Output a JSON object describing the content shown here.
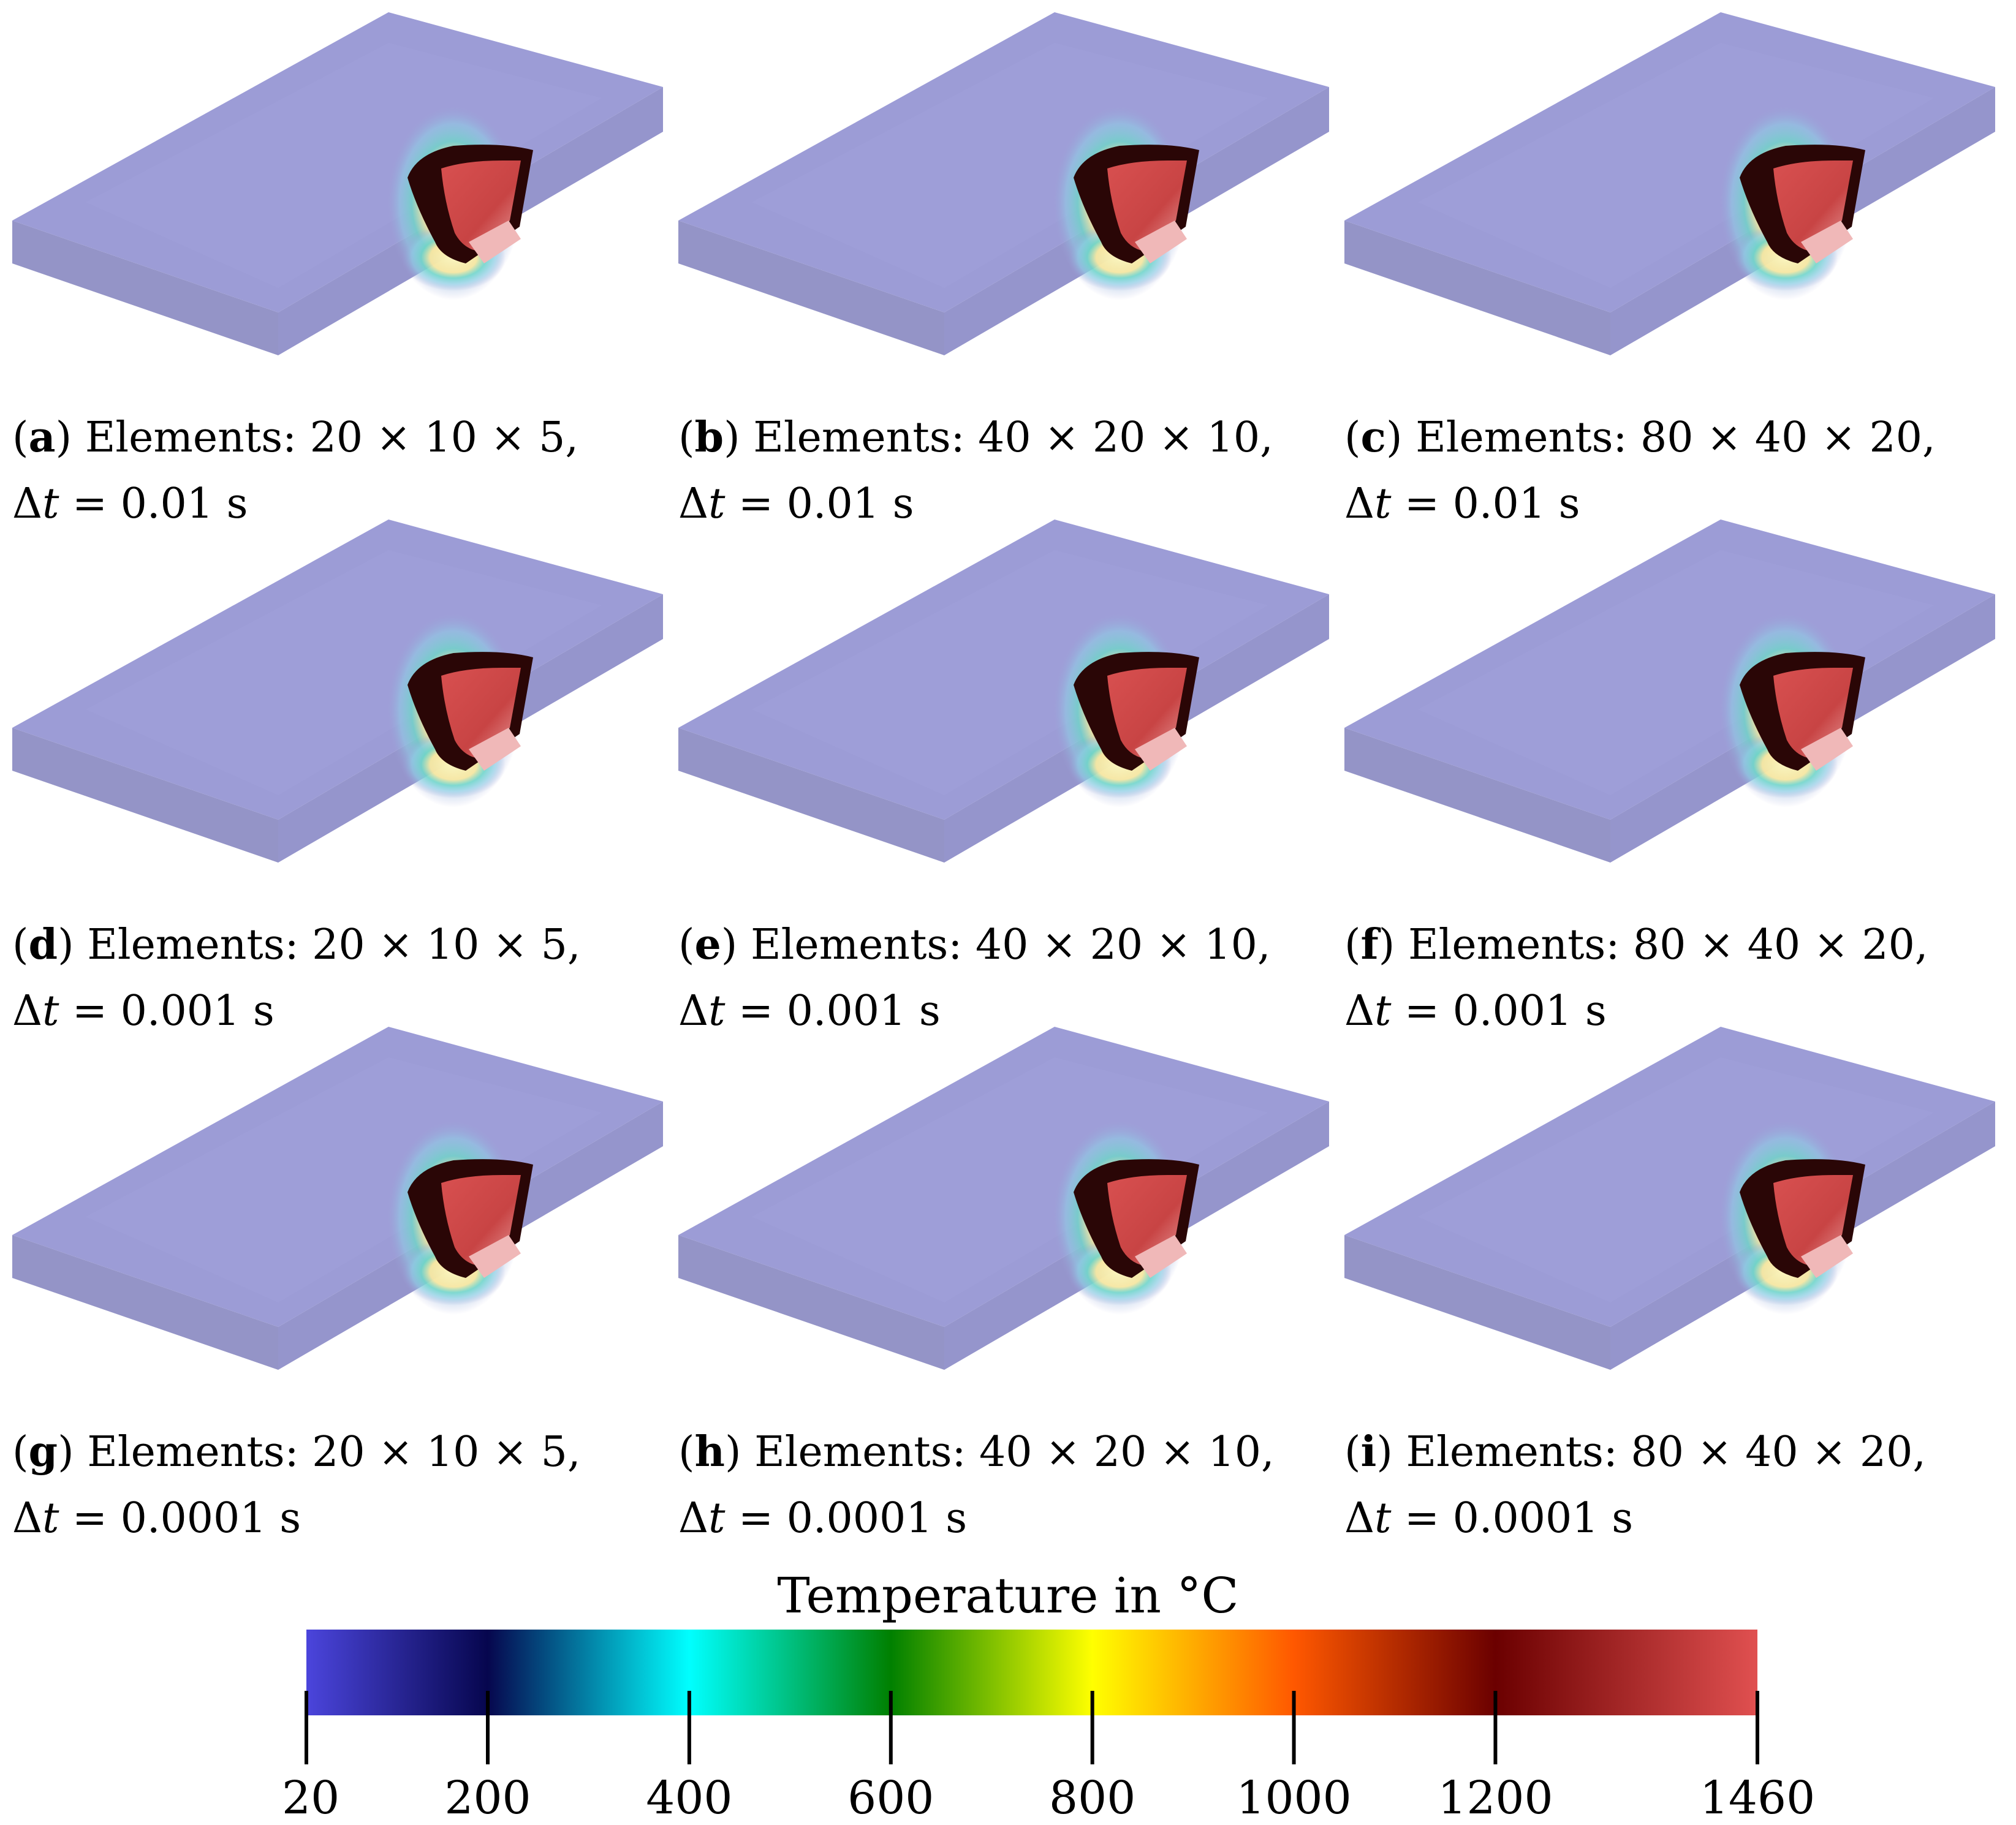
{
  "panels": [
    {
      "label": "a",
      "elements_text": "Elements: 20 × 10 × 5,",
      "dt_symbol": "Δ",
      "dt_var": "t",
      "dt_text": " = 0.01 s"
    },
    {
      "label": "b",
      "elements_text": "Elements: 40 × 20 × 10,",
      "dt_symbol": "Δ",
      "dt_var": "t",
      "dt_text": " = 0.01 s"
    },
    {
      "label": "c",
      "elements_text": "Elements: 80 × 40 × 20,",
      "dt_symbol": "Δ",
      "dt_var": "t",
      "dt_text": " = 0.01 s"
    },
    {
      "label": "d",
      "elements_text": "Elements: 20 × 10 × 5,",
      "dt_symbol": "Δ",
      "dt_var": "t",
      "dt_text": " = 0.001 s"
    },
    {
      "label": "e",
      "elements_text": "Elements: 40 × 20 × 10,",
      "dt_symbol": "Δ",
      "dt_var": "t",
      "dt_text": " = 0.001 s"
    },
    {
      "label": "f",
      "elements_text": "Elements: 80 × 40 × 20,",
      "dt_symbol": "Δ",
      "dt_var": "t",
      "dt_text": " = 0.001 s"
    },
    {
      "label": "g",
      "elements_text": "Elements: 20 × 10 × 5,",
      "dt_symbol": "Δ",
      "dt_var": "t",
      "dt_text": " = 0.0001 s"
    },
    {
      "label": "h",
      "elements_text": "Elements: 40 × 20 × 10,",
      "dt_symbol": "Δ",
      "dt_var": "t",
      "dt_text": " = 0.0001 s"
    },
    {
      "label": "i",
      "elements_text": "Elements: 80 × 40 × 20,",
      "dt_symbol": "Δ",
      "dt_var": "t",
      "dt_text": " = 0.0001 s"
    }
  ],
  "colorbar": {
    "title": "Temperature in °C",
    "min": 20,
    "max": 1460,
    "ticks": [
      20,
      200,
      400,
      600,
      800,
      1000,
      1200,
      1460
    ],
    "tick_labels": [
      "20",
      "200",
      "400",
      "600",
      "800",
      "1000",
      "1200",
      "1460"
    ],
    "gradient_stops": [
      {
        "value": 20,
        "color": "#4b45dc"
      },
      {
        "value": 200,
        "color": "#06064e"
      },
      {
        "value": 400,
        "color": "#00ffff"
      },
      {
        "value": 600,
        "color": "#008000"
      },
      {
        "value": 800,
        "color": "#ffff00"
      },
      {
        "value": 1000,
        "color": "#ff5800"
      },
      {
        "value": 1200,
        "color": "#6b0000"
      },
      {
        "value": 1460,
        "color": "#e05050"
      }
    ]
  },
  "colors": {
    "plate_top": "#9c9cd6",
    "plate_side": "#8e8ec4",
    "melt_pool_dark": "#2a0606",
    "melt_pool_red": "#c84444"
  }
}
